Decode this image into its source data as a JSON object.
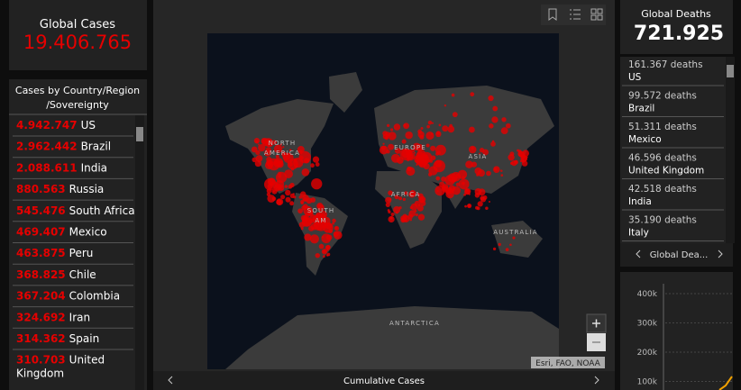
{
  "global_cases": {
    "title": "Global Cases",
    "value": "19.406.765"
  },
  "cases_list": {
    "title_lines": [
      "Cases by Country/Region",
      "/Sovereignty"
    ],
    "rows": [
      {
        "value": "4.942.747",
        "name": "US"
      },
      {
        "value": "2.962.442",
        "name": "Brazil"
      },
      {
        "value": "2.088.611",
        "name": "India"
      },
      {
        "value": "880.563",
        "name": "Russia"
      },
      {
        "value": "545.476",
        "name": "South Africa"
      },
      {
        "value": "469.407",
        "name": "Mexico"
      },
      {
        "value": "463.875",
        "name": "Peru"
      },
      {
        "value": "368.825",
        "name": "Chile"
      },
      {
        "value": "367.204",
        "name": "Colombia"
      },
      {
        "value": "324.692",
        "name": "Iran"
      },
      {
        "value": "314.362",
        "name": "Spain"
      },
      {
        "value": "310.703",
        "name": "United Kingdom"
      }
    ]
  },
  "map": {
    "labels": [
      {
        "lines": [
          "NORTH",
          "AMERICA"
        ]
      },
      {
        "lines": [
          "SOUTH",
          "AM"
        ]
      },
      {
        "lines": [
          "EUROPE"
        ]
      },
      {
        "lines": [
          "ASIA"
        ]
      },
      {
        "lines": [
          "AFRICA"
        ]
      },
      {
        "lines": [
          "AUSTRALIA"
        ]
      },
      {
        "lines": [
          "ANTARCTICA"
        ]
      }
    ],
    "attribution": "Esri, FAO, NOAA",
    "footer": "Cumulative Cases"
  },
  "global_deaths": {
    "title": "Global Deaths",
    "value": "721.925"
  },
  "deaths_list": {
    "rows": [
      {
        "value": "161.367 deaths",
        "name": "US"
      },
      {
        "value": "99.572 deaths",
        "name": "Brazil"
      },
      {
        "value": "51.311 deaths",
        "name": "Mexico"
      },
      {
        "value": "46.596 deaths",
        "name": "United Kingdom"
      },
      {
        "value": "42.518 deaths",
        "name": "India"
      },
      {
        "value": "35.190 deaths",
        "name": "Italy"
      }
    ],
    "nav": "Global Dea..."
  },
  "deaths_chart": {
    "yticks": [
      "400k",
      "300k",
      "200k",
      "100k"
    ]
  }
}
